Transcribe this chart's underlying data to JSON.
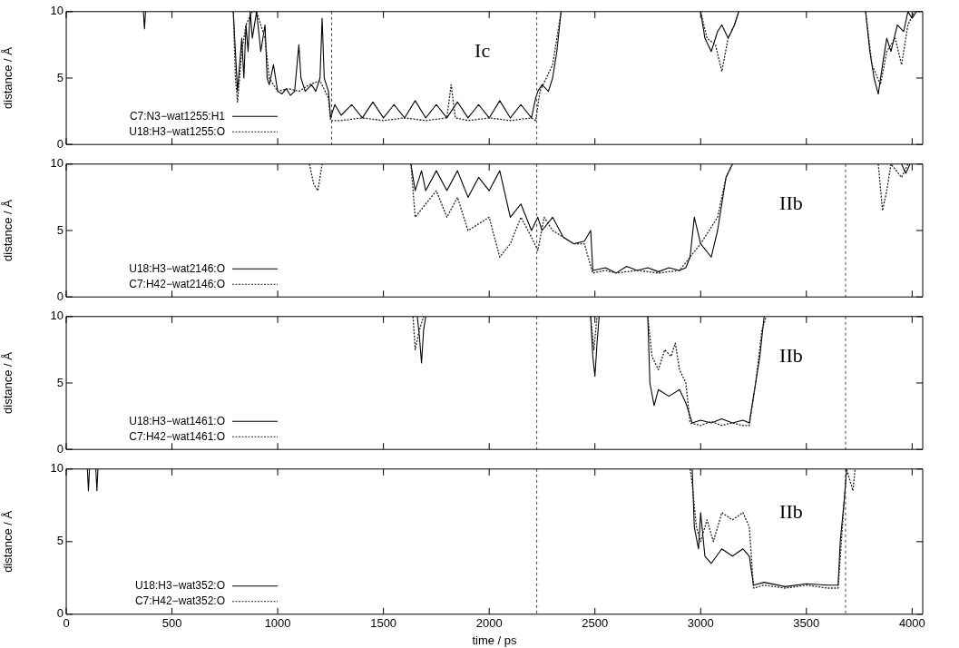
{
  "chart_data": [
    {
      "type": "line",
      "ylabel": "distance / Å",
      "xlim": [
        0,
        4050
      ],
      "ylim": [
        0,
        10
      ],
      "xticks": [
        0,
        500,
        1000,
        1500,
        2000,
        2500,
        3000,
        3500,
        4000
      ],
      "yticks": [
        0,
        5,
        10
      ],
      "tick_labels": "y",
      "grid": false,
      "legend": "bottom left",
      "marker": "none",
      "annotations": [
        "Ic"
      ],
      "ref_lines": [
        {
          "axis": "x",
          "value": 1255,
          "color": "#444444",
          "line_style": "dashed"
        },
        {
          "axis": "x",
          "value": 2225,
          "color": "#444444",
          "line_style": "dashed"
        }
      ],
      "series": [
        {
          "name": "C7:N3−wat1255:H1",
          "color": "#000000",
          "line_style": "solid",
          "x": [
            365,
            370,
            375,
            380,
            790,
            800,
            810,
            820,
            830,
            840,
            850,
            860,
            870,
            880,
            900,
            920,
            940,
            950,
            960,
            980,
            1000,
            1020,
            1040,
            1060,
            1080,
            1100,
            1110,
            1130,
            1160,
            1180,
            1200,
            1210,
            1220,
            1240,
            1250,
            1270,
            1300,
            1350,
            1400,
            1450,
            1500,
            1550,
            1600,
            1650,
            1700,
            1750,
            1800,
            1850,
            1900,
            1950,
            2000,
            2050,
            2100,
            2150,
            2200,
            2220,
            2230,
            2250,
            2280,
            2300,
            2320,
            2340,
            2350,
            3000,
            3020,
            3050,
            3080,
            3100,
            3130,
            3160,
            3180,
            3190,
            3780,
            3800,
            3820,
            3840,
            3860,
            3880,
            3900,
            3930,
            3960,
            3980,
            4000,
            4020
          ],
          "values": [
            10,
            8.7,
            10,
            null,
            10,
            7,
            4,
            6,
            8,
            5,
            9,
            7,
            10,
            8,
            10,
            7,
            9,
            5,
            4.5,
            6,
            4,
            3.8,
            4.2,
            3.7,
            4,
            7.5,
            5,
            4,
            4.5,
            4,
            5,
            9.5,
            5,
            4,
            2,
            3,
            2.2,
            3,
            2,
            3.2,
            2,
            3,
            2,
            3.3,
            2,
            3,
            2,
            3.2,
            2,
            3,
            2,
            3.3,
            2,
            3,
            2,
            3.5,
            4,
            4.5,
            4,
            5,
            7,
            10,
            null,
            10,
            8,
            7,
            8.5,
            9,
            8,
            9,
            10,
            null,
            10,
            7,
            5,
            3.8,
            6,
            8,
            7,
            9,
            8.5,
            10,
            9.5,
            10
          ]
        },
        {
          "name": "U18:H3−wat1255:O",
          "color": "#222222",
          "line_style": "dotted",
          "x": [
            790,
            800,
            810,
            830,
            850,
            880,
            900,
            940,
            960,
            1000,
            1050,
            1100,
            1150,
            1200,
            1240,
            1250,
            1300,
            1400,
            1500,
            1600,
            1700,
            1800,
            1820,
            1840,
            1900,
            2000,
            2100,
            2200,
            2220,
            2240,
            2300,
            2340,
            2350,
            3000,
            3030,
            3070,
            3100,
            3130,
            3160,
            3180,
            3190,
            3780,
            3810,
            3850,
            3880,
            3920,
            3950,
            3980,
            4010
          ],
          "values": [
            10,
            5,
            3.2,
            7,
            9,
            10,
            10,
            8,
            5,
            4,
            4.2,
            4,
            4.5,
            4.8,
            3.5,
            1.8,
            1.8,
            2,
            1.8,
            2,
            1.8,
            2,
            4.5,
            2,
            1.8,
            2,
            1.8,
            2,
            1.8,
            4,
            6,
            10,
            null,
            10,
            8,
            7.5,
            5.5,
            8,
            9,
            10,
            null,
            10,
            6,
            4.5,
            7,
            8,
            6,
            9,
            10
          ]
        }
      ]
    },
    {
      "type": "line",
      "ylabel": "distance / Å",
      "xlim": [
        0,
        4050
      ],
      "ylim": [
        0,
        10
      ],
      "xticks": [
        0,
        500,
        1000,
        1500,
        2000,
        2500,
        3000,
        3500,
        4000
      ],
      "yticks": [
        0,
        5,
        10
      ],
      "tick_labels": "y",
      "grid": false,
      "legend": "bottom left",
      "marker": "none",
      "annotations": [
        "IIb"
      ],
      "ref_lines": [
        {
          "axis": "x",
          "value": 2225,
          "color": "#444444",
          "line_style": "dashed"
        },
        {
          "axis": "x",
          "value": 3685,
          "color": "#444444",
          "line_style": "dashed"
        }
      ],
      "series": [
        {
          "name": "U18:H3−wat2146:O",
          "color": "#000000",
          "line_style": "solid",
          "x": [
            1630,
            1650,
            1680,
            1700,
            1750,
            1800,
            1850,
            1900,
            1950,
            2000,
            2050,
            2100,
            2150,
            2200,
            2230,
            2250,
            2300,
            2350,
            2400,
            2450,
            2480,
            2490,
            2550,
            2600,
            2650,
            2700,
            2750,
            2800,
            2850,
            2900,
            2930,
            2950,
            2970,
            3000,
            3050,
            3080,
            3100,
            3120,
            3150,
            3160,
            3950,
            3970,
            3990
          ],
          "values": [
            10,
            8,
            9.5,
            8,
            9.5,
            8,
            9.5,
            7.5,
            9,
            8,
            9.5,
            6,
            7,
            5,
            6,
            5,
            6,
            4.5,
            4,
            4.2,
            5,
            2,
            2.2,
            1.8,
            2.3,
            2,
            2.2,
            1.9,
            2.2,
            2,
            2.2,
            3,
            6,
            4,
            3,
            5,
            7,
            9,
            10,
            null,
            10,
            9.3,
            10
          ]
        },
        {
          "name": "C7:H42−wat2146:O",
          "color": "#222222",
          "line_style": "dotted",
          "x": [
            1150,
            1170,
            1190,
            1210,
            1220,
            1630,
            1650,
            1700,
            1750,
            1800,
            1850,
            1900,
            1950,
            2000,
            2050,
            2100,
            2150,
            2200,
            2230,
            2260,
            2300,
            2350,
            2400,
            2450,
            2490,
            2550,
            2600,
            2700,
            2800,
            2900,
            2950,
            3000,
            3080,
            3120,
            3150,
            3160,
            3840,
            3860,
            3880,
            3900,
            3950,
            3980
          ],
          "values": [
            10,
            8.5,
            8,
            10,
            null,
            10,
            6,
            7,
            8,
            6,
            7.5,
            5,
            5.5,
            6,
            3,
            4,
            6,
            4.5,
            3.5,
            6,
            5,
            4.5,
            4,
            4,
            1.8,
            2,
            1.8,
            2,
            1.8,
            2,
            3,
            4,
            6,
            9,
            10,
            null,
            10,
            6.5,
            8,
            10,
            9,
            10
          ]
        }
      ]
    },
    {
      "type": "line",
      "ylabel": "distance / Å",
      "xlim": [
        0,
        4050
      ],
      "ylim": [
        0,
        10
      ],
      "xticks": [
        0,
        500,
        1000,
        1500,
        2000,
        2500,
        3000,
        3500,
        4000
      ],
      "yticks": [
        0,
        5,
        10
      ],
      "tick_labels": "y",
      "grid": false,
      "legend": "bottom left",
      "marker": "none",
      "annotations": [
        "IIb"
      ],
      "ref_lines": [
        {
          "axis": "x",
          "value": 2225,
          "color": "#444444",
          "line_style": "dashed"
        },
        {
          "axis": "x",
          "value": 3685,
          "color": "#444444",
          "line_style": "dashed"
        }
      ],
      "series": [
        {
          "name": "U18:H3−wat1461:O",
          "color": "#000000",
          "line_style": "solid",
          "x": [
            1660,
            1670,
            1680,
            1690,
            1700,
            1710,
            2480,
            2490,
            2500,
            2510,
            2520,
            2530,
            2750,
            2760,
            2780,
            2800,
            2850,
            2900,
            2930,
            2950,
            2960,
            3000,
            3050,
            3100,
            3150,
            3200,
            3230,
            3250,
            3280,
            3300
          ],
          "values": [
            10,
            8.5,
            6.5,
            9,
            10,
            null,
            10,
            7,
            5.5,
            8,
            10,
            null,
            10,
            5,
            3.3,
            4.5,
            4,
            4.5,
            3.5,
            2.5,
            2,
            2.2,
            2,
            2.3,
            2,
            2.2,
            2,
            4,
            7,
            10
          ]
        },
        {
          "name": "C7:H42−wat1461:O",
          "color": "#222222",
          "line_style": "dotted",
          "x": [
            1640,
            1650,
            1670,
            1690,
            1700,
            2480,
            2495,
            2510,
            2520,
            2750,
            2770,
            2800,
            2830,
            2860,
            2880,
            2900,
            2930,
            2950,
            3000,
            3050,
            3100,
            3150,
            3200,
            3230,
            3260,
            3290,
            3310
          ],
          "values": [
            10,
            7.5,
            9,
            10,
            null,
            10,
            7.5,
            10,
            null,
            10,
            7,
            6,
            7.5,
            7,
            8,
            6,
            5,
            2,
            1.8,
            2.1,
            1.8,
            2,
            1.8,
            1.8,
            5,
            9,
            10
          ]
        }
      ]
    },
    {
      "type": "line",
      "ylabel": "distance / Å",
      "xlabel": "time / ps",
      "xlim": [
        0,
        4050
      ],
      "ylim": [
        0,
        10
      ],
      "xticks": [
        0,
        500,
        1000,
        1500,
        2000,
        2500,
        3000,
        3500,
        4000
      ],
      "yticks": [
        0,
        5,
        10
      ],
      "grid": false,
      "legend": "bottom left",
      "marker": "none",
      "annotations": [
        "IIb"
      ],
      "ref_lines": [
        {
          "axis": "x",
          "value": 2225,
          "color": "#444444",
          "line_style": "dashed"
        },
        {
          "axis": "x",
          "value": 3685,
          "color": "#444444",
          "line_style": "dashed"
        }
      ],
      "series": [
        {
          "name": "U18:H3−wat352:O",
          "color": "#000000",
          "line_style": "solid",
          "x": [
            100,
            105,
            110,
            115,
            140,
            145,
            150,
            155,
            2960,
            2970,
            2990,
            3000,
            3020,
            3050,
            3100,
            3150,
            3200,
            3230,
            3250,
            3300,
            3400,
            3500,
            3600,
            3650,
            3660,
            3680,
            3690
          ],
          "values": [
            10,
            8.5,
            10,
            null,
            10,
            8.5,
            10,
            null,
            10,
            6,
            4.5,
            7,
            4,
            3.5,
            4.5,
            4,
            4.5,
            4,
            2,
            2.2,
            1.9,
            2.1,
            2,
            2,
            5,
            8,
            10
          ]
        },
        {
          "name": "C7:H42−wat352:O",
          "color": "#222222",
          "line_style": "dotted",
          "x": [
            2950,
            2960,
            2980,
            3000,
            3030,
            3060,
            3100,
            3150,
            3200,
            3230,
            3250,
            3300,
            3400,
            3500,
            3600,
            3650,
            3670,
            3690,
            3720,
            3730
          ],
          "values": [
            10,
            9,
            6,
            5,
            6.5,
            5,
            7,
            6.5,
            7,
            6,
            1.8,
            2,
            1.8,
            2,
            1.8,
            1.8,
            6,
            10,
            8.5,
            10
          ]
        }
      ]
    }
  ]
}
